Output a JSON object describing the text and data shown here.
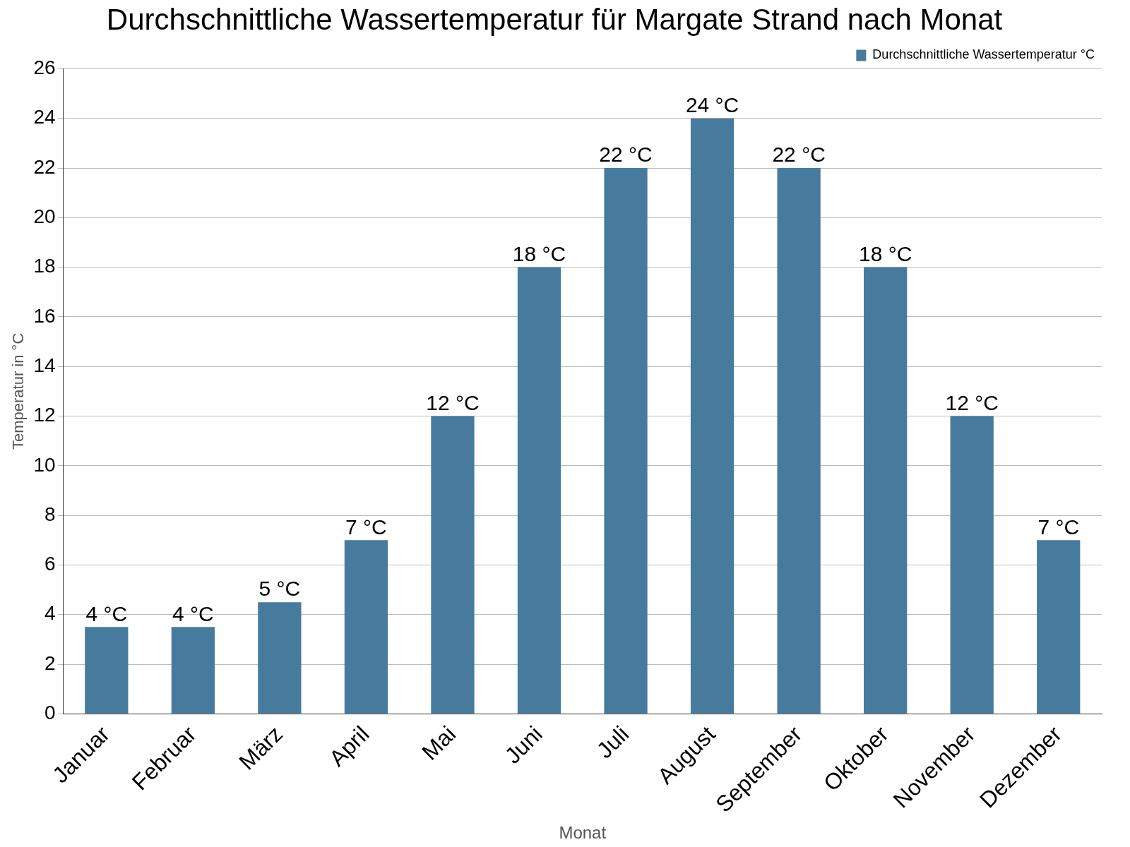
{
  "chart_data": {
    "type": "bar",
    "title": "Durchschnittliche Wassertemperatur für Margate Strand nach Monat",
    "xlabel": "Monat",
    "ylabel": "Temperatur in °C",
    "categories": [
      "Januar",
      "Februar",
      "März",
      "April",
      "Mai",
      "Juni",
      "Juli",
      "August",
      "September",
      "Oktober",
      "November",
      "Dezember"
    ],
    "series": [
      {
        "name": "Durchschnittliche Wassertemperatur °C",
        "color": "#467b9e",
        "values": [
          3.5,
          3.5,
          4.5,
          7,
          12,
          18,
          22,
          24,
          22,
          18,
          12,
          7
        ],
        "value_labels": [
          "4 °C",
          "4 °C",
          "5 °C",
          "7 °C",
          "12 °C",
          "18 °C",
          "22 °C",
          "24 °C",
          "22 °C",
          "18 °C",
          "12 °C",
          "7 °C"
        ]
      }
    ],
    "ylim": [
      0,
      26
    ],
    "yticks": [
      0,
      2,
      4,
      6,
      8,
      10,
      12,
      14,
      16,
      18,
      20,
      22,
      24,
      26
    ],
    "grid": "y",
    "legend": "top right"
  }
}
